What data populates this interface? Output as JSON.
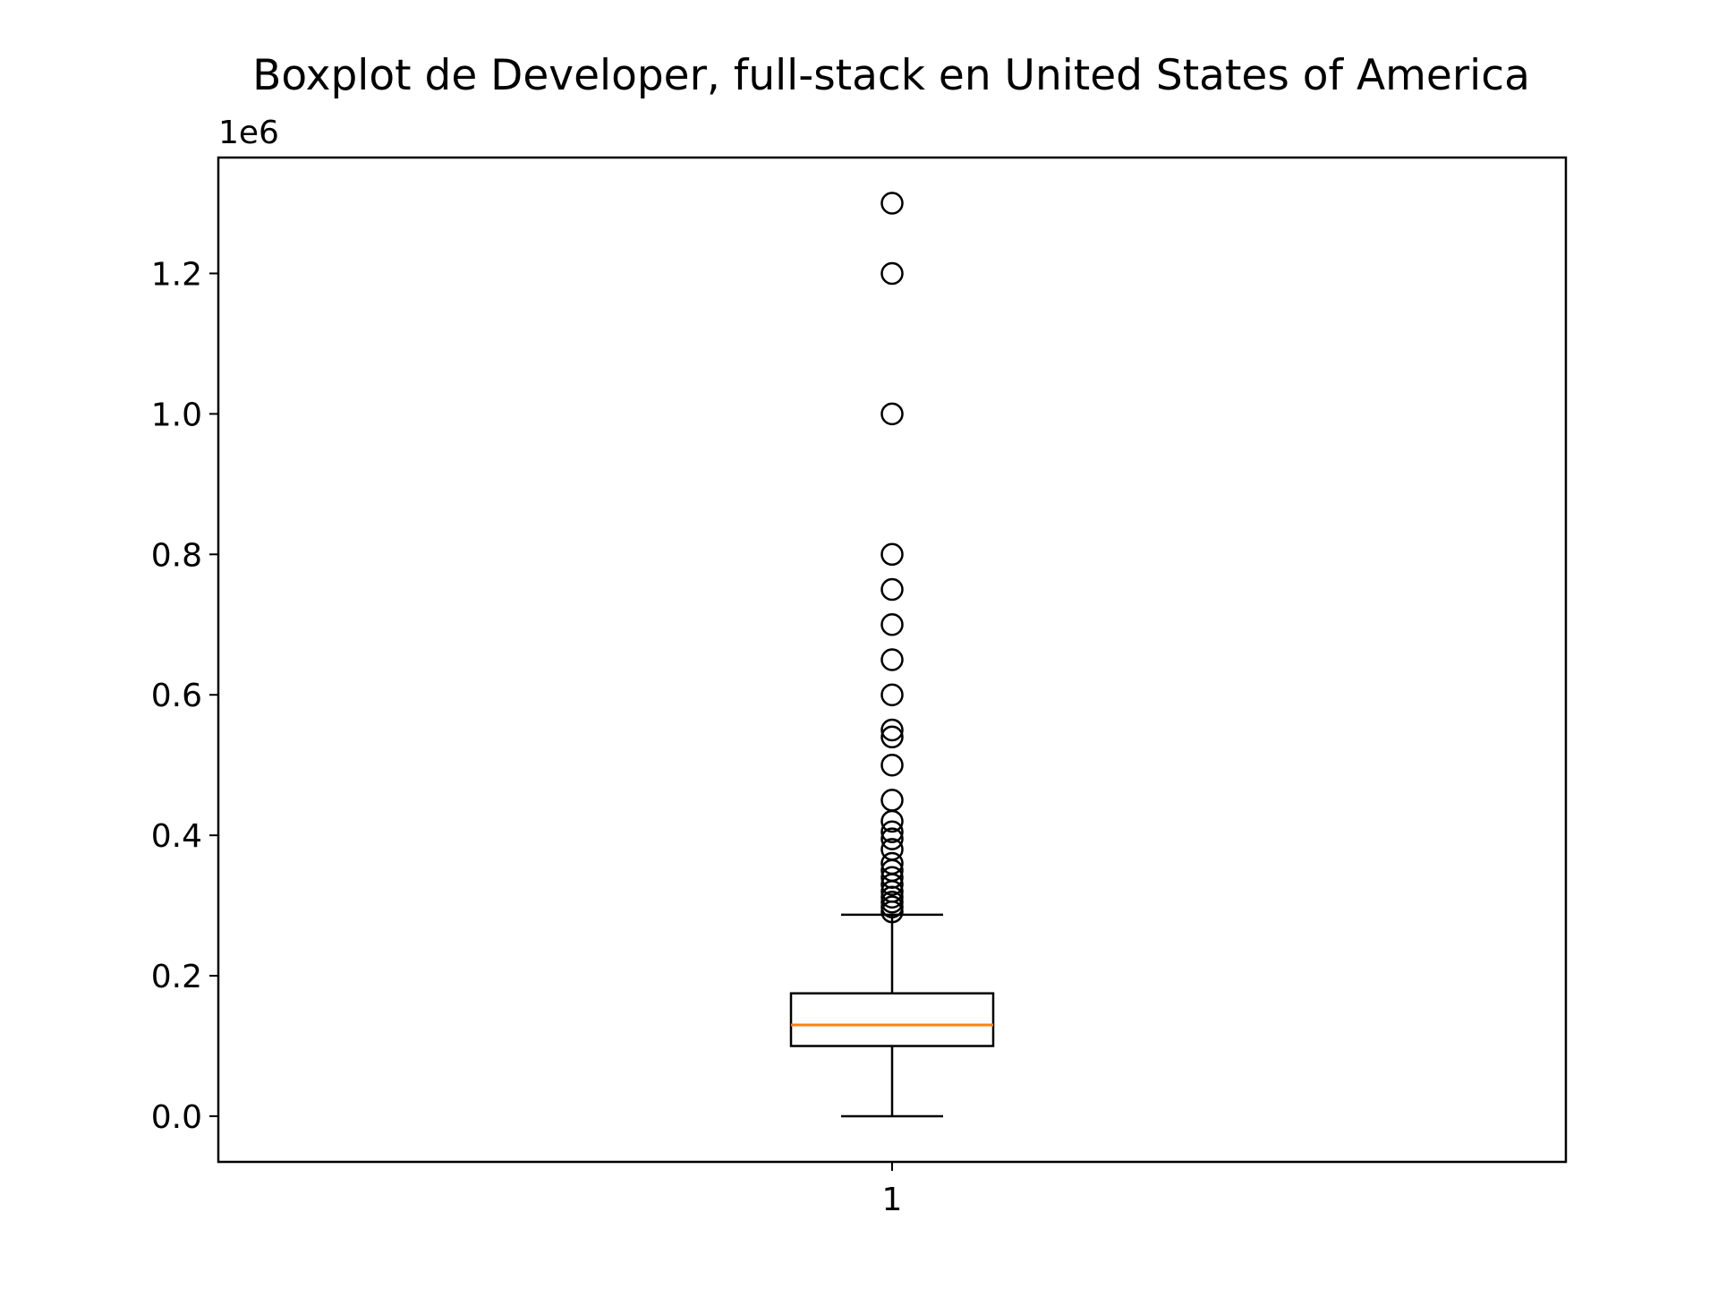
{
  "chart_data": {
    "type": "box",
    "title": "Boxplot de Developer, full-stack en United States of America",
    "xlabel": "",
    "ylabel": "",
    "y_offset_label": "1e6",
    "x_tick_labels": [
      "1"
    ],
    "y_ticks": [
      0.0,
      200000,
      400000,
      600000,
      800000,
      1000000,
      1200000
    ],
    "y_tick_labels": [
      "0.0",
      "0.2",
      "0.4",
      "0.6",
      "0.8",
      "1.0",
      "1.2"
    ],
    "ylim": [
      -65000,
      1365000
    ],
    "grid": false,
    "legend": "none",
    "box": {
      "category": "1",
      "whisker_low": 0,
      "q1": 100000,
      "median": 130000,
      "q3": 175000,
      "whisker_high": 287000
    },
    "outliers": [
      1300000,
      1200000,
      1000000,
      800000,
      750000,
      700000,
      650000,
      600000,
      550000,
      540000,
      500000,
      450000,
      420000,
      405000,
      395000,
      380000,
      360000,
      350000,
      340000,
      330000,
      320000,
      312000,
      305000,
      298000,
      291000
    ],
    "colors": {
      "box": "#000000",
      "median": "#ff7f0e",
      "outlier": "#000000"
    }
  }
}
